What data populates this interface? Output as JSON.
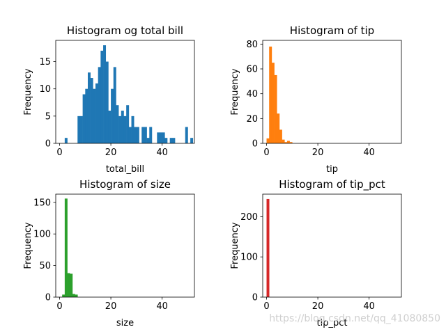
{
  "watermark": "https://blog.csdn.net/qq_41080850",
  "chart_data": [
    {
      "type": "bar",
      "title": "Histogram og total bill",
      "xlabel": "total_bill",
      "ylabel": "Frequency",
      "color": "#1f77b4",
      "xlim": [
        -1.5,
        52.6
      ],
      "ylim": [
        0,
        18.9
      ],
      "xticks": [
        0,
        20,
        40
      ],
      "yticks": [
        0,
        5,
        10,
        15
      ],
      "bin_edges_start": 0,
      "bin_width": 1,
      "values": [
        0,
        0,
        1,
        0,
        0,
        0,
        0,
        5,
        5,
        9,
        10,
        13,
        12,
        10,
        11,
        14,
        17,
        18,
        15,
        6,
        10,
        14,
        7,
        5,
        6,
        5,
        7,
        3,
        5,
        3,
        3,
        0,
        3,
        3,
        1,
        3,
        0,
        0,
        2,
        2,
        2,
        1,
        0,
        1,
        1,
        0,
        0,
        0,
        0,
        3,
        0,
        1
      ]
    },
    {
      "type": "bar",
      "title": "Histogram of tip",
      "xlabel": "tip",
      "ylabel": "Frequency",
      "color": "#ff7f0e",
      "xlim": [
        -1.5,
        52.6
      ],
      "ylim": [
        0,
        83
      ],
      "xticks": [
        0,
        20,
        40
      ],
      "yticks": [
        0,
        20,
        40,
        60,
        80
      ],
      "bin_edges_start": 0,
      "bin_width": 1,
      "values": [
        4,
        78,
        65,
        55,
        24,
        11,
        3,
        1,
        2,
        1
      ]
    },
    {
      "type": "bar",
      "title": "Histogram of size",
      "xlabel": "size",
      "ylabel": "Frequency",
      "color": "#2ca02c",
      "xlim": [
        -1.5,
        52.6
      ],
      "ylim": [
        0,
        163
      ],
      "xticks": [
        0,
        20,
        40
      ],
      "yticks": [
        0,
        50,
        100,
        150
      ],
      "bin_edges_start": 0,
      "bin_width": 1,
      "values": [
        0,
        4,
        156,
        38,
        37,
        5,
        4
      ]
    },
    {
      "type": "bar",
      "title": "Histogram of tip_pct",
      "xlabel": "tip_pct",
      "ylabel": "Frequency",
      "color": "#d62728",
      "xlim": [
        -1.5,
        52.6
      ],
      "ylim": [
        0,
        256
      ],
      "xticks": [
        0,
        20,
        40
      ],
      "yticks": [
        0,
        100,
        200
      ],
      "bin_edges_start": 0,
      "bin_width": 1,
      "values": [
        244
      ]
    }
  ]
}
